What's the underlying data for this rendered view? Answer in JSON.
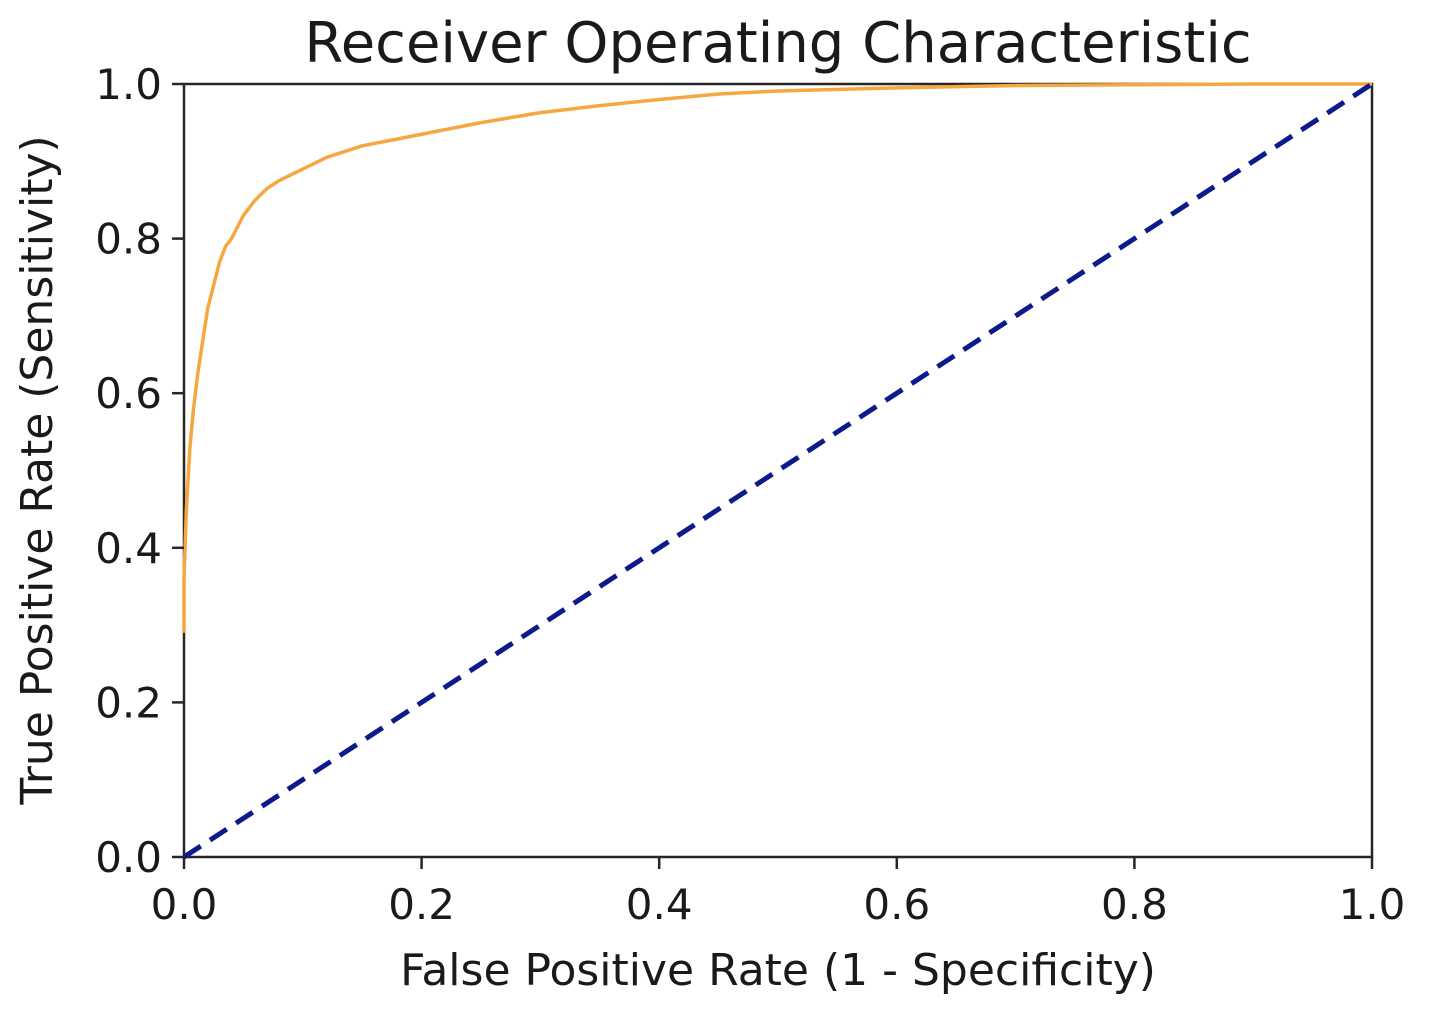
{
  "chart_data": {
    "type": "line",
    "title": "Receiver Operating Characteristic",
    "xlabel": "False Positive Rate (1 - Specificity)",
    "ylabel": "True Positive Rate (Sensitivity)",
    "xlim": [
      0.0,
      1.0
    ],
    "ylim": [
      0.0,
      1.0
    ],
    "xticks": [
      "0.0",
      "0.2",
      "0.4",
      "0.6",
      "0.8",
      "1.0"
    ],
    "yticks": [
      "0.0",
      "0.2",
      "0.4",
      "0.6",
      "0.8",
      "1.0"
    ],
    "grid": false,
    "series": [
      {
        "color": "#f5a742",
        "style": "solid",
        "x": [
          0.0,
          0.0,
          0.002,
          0.005,
          0.008,
          0.012,
          0.016,
          0.02,
          0.025,
          0.03,
          0.035,
          0.04,
          0.05,
          0.06,
          0.07,
          0.08,
          0.1,
          0.12,
          0.15,
          0.2,
          0.25,
          0.3,
          0.35,
          0.4,
          0.45,
          0.5,
          0.6,
          0.7,
          0.8,
          0.9,
          1.0
        ],
        "y": [
          0.29,
          0.36,
          0.45,
          0.53,
          0.58,
          0.63,
          0.67,
          0.71,
          0.74,
          0.77,
          0.79,
          0.8,
          0.83,
          0.85,
          0.865,
          0.875,
          0.89,
          0.905,
          0.92,
          0.935,
          0.95,
          0.963,
          0.972,
          0.98,
          0.987,
          0.991,
          0.995,
          0.998,
          0.999,
          1.0,
          1.0
        ]
      },
      {
        "color": "#0d1a8c",
        "style": "dashed",
        "x": [
          0.0,
          1.0
        ],
        "y": [
          0.0,
          1.0
        ]
      }
    ]
  }
}
